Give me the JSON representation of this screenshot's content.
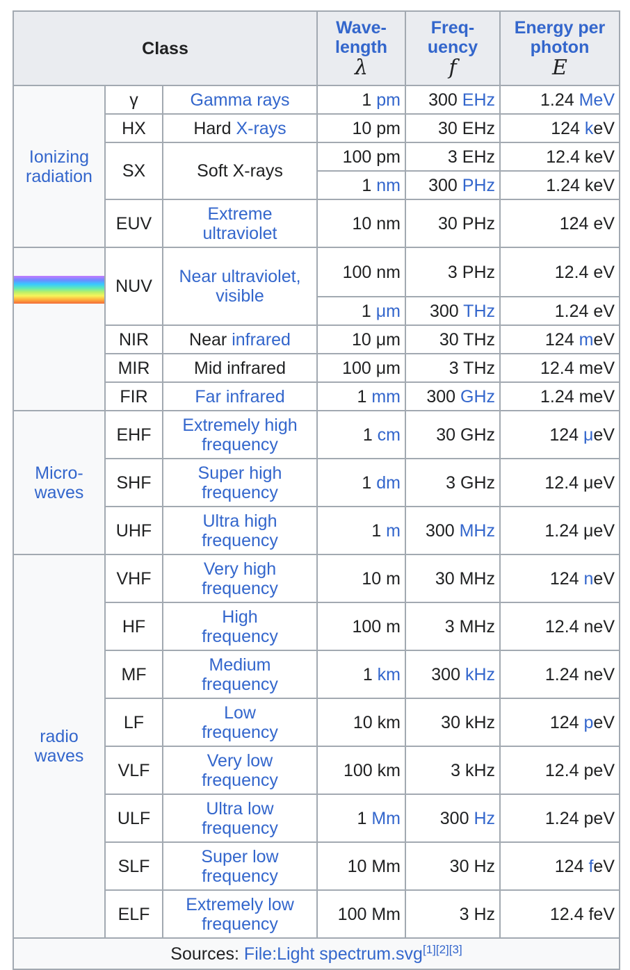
{
  "header": {
    "class": "Class",
    "wavelength": "Wave-\nlength",
    "wavelength_symbol": "λ",
    "frequency": "Freq-\nuency",
    "frequency_symbol": "f",
    "energy": "Energy per\nphoton",
    "energy_symbol": "E"
  },
  "groups": {
    "ionizing": "Ionizing radiation",
    "visible_swatch": "visible-spectrum-swatch",
    "microwaves": "Micro-\nwaves",
    "radio": "radio waves"
  },
  "rows": [
    {
      "abbr": "γ",
      "name": "Gamma rays",
      "wl_num": "1",
      "wl_unit": "pm",
      "fr_num": "300",
      "fr_unit": "EHz",
      "en_num": "1.24",
      "en_unit": "MeV"
    },
    {
      "abbr": "HX",
      "name_pre": "Hard",
      "name_link": "X-rays",
      "wl_num": "10",
      "wl_unit": "pm",
      "fr_num": "30",
      "fr_unit": "EHz",
      "en_num": "124",
      "en_prefix": "k",
      "en_rest": "eV"
    },
    {
      "abbr": "SX",
      "name": "Soft X-rays",
      "wl_num": "100",
      "wl_unit": "pm",
      "fr_num": "3",
      "fr_unit": "EHz",
      "en_num": "12.4",
      "en_unit": "keV"
    },
    {
      "wl_num": "1",
      "wl_unit": "nm",
      "fr_num": "300",
      "fr_unit": "PHz",
      "en_num": "1.24",
      "en_unit": "keV"
    },
    {
      "abbr": "EUV",
      "name": "Extreme\nultraviolet",
      "wl_num": "10",
      "wl_unit": "nm",
      "fr_num": "30",
      "fr_unit": "PHz",
      "en_num": "124",
      "en_unit": "eV"
    },
    {
      "abbr": "NUV",
      "name": "Near ultraviolet,",
      "name_link2": "visible",
      "wl_num": "100",
      "wl_unit": "nm",
      "fr_num": "3",
      "fr_unit": "PHz",
      "en_num": "12.4",
      "en_unit": "eV"
    },
    {
      "wl_num": "1",
      "wl_unit": "μm",
      "fr_num": "300",
      "fr_unit": "THz",
      "en_num": "1.24",
      "en_unit": "eV"
    },
    {
      "abbr": "NIR",
      "name_pre": "Near",
      "name_link": "infrared",
      "wl_num": "10",
      "wl_unit": "μm",
      "fr_num": "30",
      "fr_unit": "THz",
      "en_num": "124",
      "en_prefix": "m",
      "en_rest": "eV"
    },
    {
      "abbr": "MIR",
      "name": "Mid infrared",
      "wl_num": "100",
      "wl_unit": "μm",
      "fr_num": "3",
      "fr_unit": "THz",
      "en_num": "12.4",
      "en_unit": "meV"
    },
    {
      "abbr": "FIR",
      "name": "Far infrared",
      "wl_num": "1",
      "wl_unit": "mm",
      "fr_num": "300",
      "fr_unit": "GHz",
      "en_num": "1.24",
      "en_unit": "meV"
    },
    {
      "abbr": "EHF",
      "name": "Extremely high\nfrequency",
      "wl_num": "1",
      "wl_unit": "cm",
      "fr_num": "30",
      "fr_unit": "GHz",
      "en_num": "124",
      "en_prefix": "μ",
      "en_rest": "eV"
    },
    {
      "abbr": "SHF",
      "name": "Super high\nfrequency",
      "wl_num": "1",
      "wl_unit": "dm",
      "fr_num": "3",
      "fr_unit": "GHz",
      "en_num": "12.4",
      "en_unit": "μeV"
    },
    {
      "abbr": "UHF",
      "name": "Ultra high\nfrequency",
      "wl_num": "1",
      "wl_unit": "m",
      "fr_num": "300",
      "fr_unit": "MHz",
      "en_num": "1.24",
      "en_unit": "μeV"
    },
    {
      "abbr": "VHF",
      "name": "Very high\nfrequency",
      "wl_num": "10",
      "wl_unit": "m",
      "fr_num": "30",
      "fr_unit": "MHz",
      "en_num": "124",
      "en_prefix": "n",
      "en_rest": "eV"
    },
    {
      "abbr": "HF",
      "name": "High\nfrequency",
      "wl_num": "100",
      "wl_unit": "m",
      "fr_num": "3",
      "fr_unit": "MHz",
      "en_num": "12.4",
      "en_unit": "neV"
    },
    {
      "abbr": "MF",
      "name": "Medium\nfrequency",
      "wl_num": "1",
      "wl_unit": "km",
      "fr_num": "300",
      "fr_unit": "kHz",
      "en_num": "1.24",
      "en_unit": "neV"
    },
    {
      "abbr": "LF",
      "name": "Low\nfrequency",
      "wl_num": "10",
      "wl_unit": "km",
      "fr_num": "30",
      "fr_unit": "kHz",
      "en_num": "124",
      "en_prefix": "p",
      "en_rest": "eV"
    },
    {
      "abbr": "VLF",
      "name": "Very low\nfrequency",
      "wl_num": "100",
      "wl_unit": "km",
      "fr_num": "3",
      "fr_unit": "kHz",
      "en_num": "12.4",
      "en_unit": "peV"
    },
    {
      "abbr": "ULF",
      "name": "Ultra low\nfrequency",
      "wl_num": "1",
      "wl_unit": "Mm",
      "fr_num": "300",
      "fr_unit": "Hz",
      "en_num": "1.24",
      "en_unit": "peV"
    },
    {
      "abbr": "SLF",
      "name": "Super low\nfrequency",
      "wl_num": "10",
      "wl_unit": "Mm",
      "fr_num": "30",
      "fr_unit": "Hz",
      "en_num": "124",
      "en_prefix": "f",
      "en_rest": "eV"
    },
    {
      "abbr": "ELF",
      "name": "Extremely low\nfrequency",
      "wl_num": "100",
      "wl_unit": "Mm",
      "fr_num": "3",
      "fr_unit": "Hz",
      "en_num": "12.4",
      "en_unit": "feV"
    }
  ],
  "footer": {
    "label": "Sources:",
    "link": "File:Light spectrum.svg",
    "refs": [
      "[1]",
      "[2]",
      "[3]"
    ]
  },
  "colors": {
    "link": "#3366cc",
    "header_bg": "#eaecf0",
    "border": "#a2a9b1",
    "cell_bg": "#f8f9fa"
  }
}
